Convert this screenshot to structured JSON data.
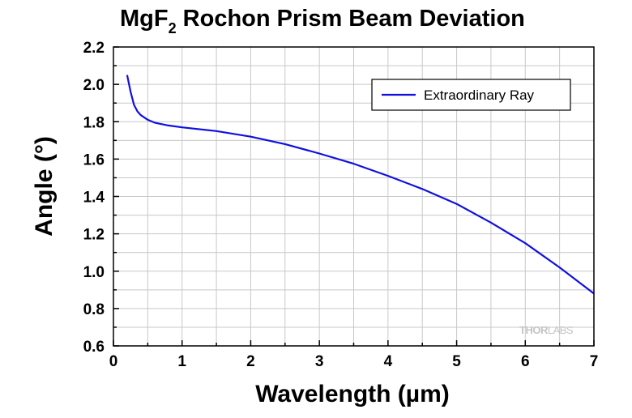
{
  "title": {
    "main": "MgF",
    "sub": "2",
    "rest": " Rochon Prism Beam Deviation"
  },
  "watermark": {
    "bold": "THOR",
    "light": "LABS"
  },
  "colors": {
    "series": "#1010e0",
    "grid": "#c8c8c8",
    "axis": "#000000"
  },
  "chart_data": {
    "type": "line",
    "title": "MgF2 Rochon Prism Beam Deviation",
    "xlabel": "Wavelength (µm)",
    "ylabel": "Angle (°)",
    "xlim": [
      0,
      7
    ],
    "ylim": [
      0.6,
      2.2
    ],
    "xticks": [
      "0",
      "1",
      "2",
      "3",
      "4",
      "5",
      "6",
      "7"
    ],
    "yticks": [
      "0.6",
      "0.8",
      "1.0",
      "1.2",
      "1.4",
      "1.6",
      "1.8",
      "2.0",
      "2.2"
    ],
    "grid": true,
    "legend_position": "top-right",
    "series": [
      {
        "name": "Extraordinary Ray",
        "color": "#1010e0",
        "x": [
          0.2,
          0.25,
          0.3,
          0.35,
          0.4,
          0.5,
          0.6,
          0.8,
          1.0,
          1.5,
          2.0,
          2.5,
          3.0,
          3.5,
          4.0,
          4.5,
          5.0,
          5.5,
          6.0,
          6.5,
          7.0
        ],
        "y": [
          2.05,
          1.96,
          1.89,
          1.855,
          1.835,
          1.81,
          1.795,
          1.78,
          1.77,
          1.75,
          1.72,
          1.68,
          1.63,
          1.575,
          1.51,
          1.44,
          1.36,
          1.26,
          1.15,
          1.02,
          0.88
        ]
      }
    ]
  }
}
